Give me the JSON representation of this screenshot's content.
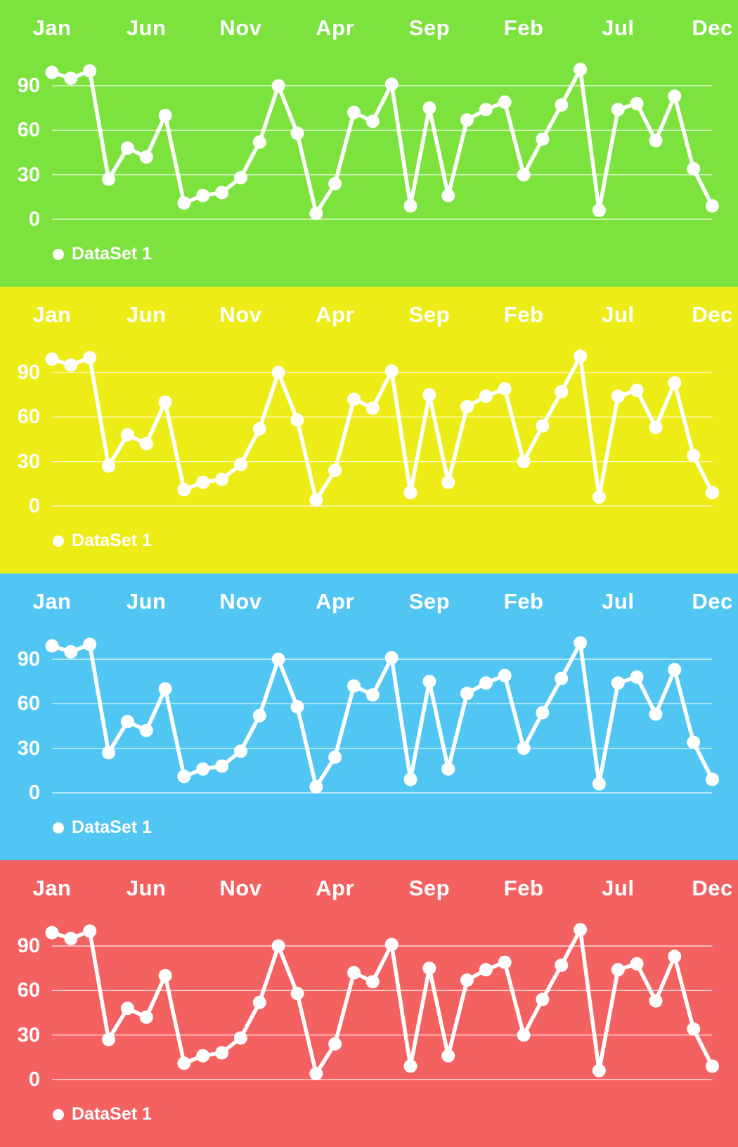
{
  "chart_data": [
    {
      "type": "line",
      "panel_index": 0,
      "background": "#7CE23E",
      "text_color": "#ffffff",
      "line_color": "#ffffff",
      "grid": true,
      "grid_color": "#ffffff",
      "x_axis_position": "top",
      "legend": {
        "label": "DataSet 1",
        "position": "bottom-left",
        "marker_color": "#ffffff"
      },
      "x_tick_labels": [
        "Jan",
        "Jun",
        "Nov",
        "Apr",
        "Sep",
        "Feb",
        "Jul",
        "Dec"
      ],
      "x_tick_positions": [
        0,
        5,
        10,
        15,
        20,
        25,
        30,
        35
      ],
      "points_count": 36,
      "y_ticks": [
        0,
        30,
        60,
        90
      ],
      "ylim": [
        0,
        105
      ],
      "series": [
        {
          "name": "DataSet 1",
          "color": "#ffffff",
          "values": [
            99,
            95,
            100,
            27,
            48,
            42,
            70,
            11,
            16,
            18,
            28,
            52,
            90,
            58,
            4,
            24,
            72,
            66,
            91,
            9,
            75,
            16,
            67,
            74,
            79,
            30,
            54,
            77,
            101,
            6,
            74,
            78,
            53,
            83,
            34,
            9
          ]
        }
      ]
    },
    {
      "type": "line",
      "panel_index": 1,
      "background": "#EDEC16",
      "text_color": "#ffffff",
      "line_color": "#ffffff",
      "grid": true,
      "grid_color": "#ffffff",
      "x_axis_position": "top",
      "legend": {
        "label": "DataSet 1",
        "position": "bottom-left",
        "marker_color": "#ffffff"
      },
      "x_tick_labels": [
        "Jan",
        "Jun",
        "Nov",
        "Apr",
        "Sep",
        "Feb",
        "Jul",
        "Dec"
      ],
      "x_tick_positions": [
        0,
        5,
        10,
        15,
        20,
        25,
        30,
        35
      ],
      "points_count": 36,
      "y_ticks": [
        0,
        30,
        60,
        90
      ],
      "ylim": [
        0,
        105
      ],
      "series": [
        {
          "name": "DataSet 1",
          "color": "#ffffff",
          "values": [
            99,
            95,
            100,
            27,
            48,
            42,
            70,
            11,
            16,
            18,
            28,
            52,
            90,
            58,
            4,
            24,
            72,
            66,
            91,
            9,
            75,
            16,
            67,
            74,
            79,
            30,
            54,
            77,
            101,
            6,
            74,
            78,
            53,
            83,
            34,
            9
          ]
        }
      ]
    },
    {
      "type": "line",
      "panel_index": 2,
      "background": "#52C6F2",
      "text_color": "#ffffff",
      "line_color": "#ffffff",
      "grid": true,
      "grid_color": "#ffffff",
      "x_axis_position": "top",
      "legend": {
        "label": "DataSet 1",
        "position": "bottom-left",
        "marker_color": "#ffffff"
      },
      "x_tick_labels": [
        "Jan",
        "Jun",
        "Nov",
        "Apr",
        "Sep",
        "Feb",
        "Jul",
        "Dec"
      ],
      "x_tick_positions": [
        0,
        5,
        10,
        15,
        20,
        25,
        30,
        35
      ],
      "points_count": 36,
      "y_ticks": [
        0,
        30,
        60,
        90
      ],
      "ylim": [
        0,
        105
      ],
      "series": [
        {
          "name": "DataSet 1",
          "color": "#ffffff",
          "values": [
            99,
            95,
            100,
            27,
            48,
            42,
            70,
            11,
            16,
            18,
            28,
            52,
            90,
            58,
            4,
            24,
            72,
            66,
            91,
            9,
            75,
            16,
            67,
            74,
            79,
            30,
            54,
            77,
            101,
            6,
            74,
            78,
            53,
            83,
            34,
            9
          ]
        }
      ]
    },
    {
      "type": "line",
      "panel_index": 3,
      "background": "#F46161",
      "text_color": "#ffffff",
      "line_color": "#ffffff",
      "grid": true,
      "grid_color": "#ffffff",
      "x_axis_position": "top",
      "legend": {
        "label": "DataSet 1",
        "position": "bottom-left",
        "marker_color": "#ffffff"
      },
      "x_tick_labels": [
        "Jan",
        "Jun",
        "Nov",
        "Apr",
        "Sep",
        "Feb",
        "Jul",
        "Dec"
      ],
      "x_tick_positions": [
        0,
        5,
        10,
        15,
        20,
        25,
        30,
        35
      ],
      "points_count": 36,
      "y_ticks": [
        0,
        30,
        60,
        90
      ],
      "ylim": [
        0,
        105
      ],
      "series": [
        {
          "name": "DataSet 1",
          "color": "#ffffff",
          "values": [
            99,
            95,
            100,
            27,
            48,
            42,
            70,
            11,
            16,
            18,
            28,
            52,
            90,
            58,
            4,
            24,
            72,
            66,
            91,
            9,
            75,
            16,
            67,
            74,
            79,
            30,
            54,
            77,
            101,
            6,
            74,
            78,
            53,
            83,
            34,
            9
          ]
        }
      ]
    }
  ]
}
